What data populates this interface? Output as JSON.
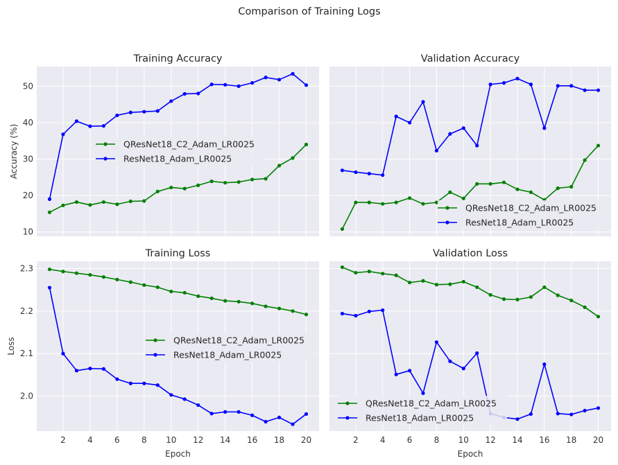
{
  "figure_title": "Comparison of Training Logs",
  "colors": {
    "series_green": "#008000",
    "series_blue": "#0000ff",
    "panel_bg": "#eaeaf2",
    "grid": "#ffffff"
  },
  "chart_data": [
    {
      "type": "line",
      "title": "Training Accuracy",
      "xlabel": "",
      "ylabel": "Accuracy (%)",
      "x": [
        1,
        2,
        3,
        4,
        5,
        6,
        7,
        8,
        9,
        10,
        11,
        12,
        13,
        14,
        15,
        16,
        17,
        18,
        19,
        20
      ],
      "xlim": [
        0.05,
        20.95
      ],
      "ylim": [
        8.8,
        55.4
      ],
      "xticks": [
        2,
        4,
        6,
        8,
        10,
        12,
        14,
        16,
        18,
        20
      ],
      "yticks": [
        10,
        20,
        30,
        40,
        50
      ],
      "show_xticklabels": false,
      "show_yticklabels": true,
      "grid": true,
      "legend_position": "center-left",
      "series": [
        {
          "name": "QResNet18_C2_Adam_LR0025",
          "color": "#008000",
          "values": [
            15.4,
            17.3,
            18.2,
            17.4,
            18.2,
            17.6,
            18.4,
            18.5,
            21.1,
            22.2,
            21.9,
            22.8,
            23.9,
            23.5,
            23.7,
            24.4,
            24.6,
            28.2,
            30.3,
            34.0
          ]
        },
        {
          "name": "ResNet18_Adam_LR0025",
          "color": "#0000ff",
          "values": [
            19.0,
            36.8,
            40.4,
            39.0,
            39.1,
            42.0,
            42.8,
            43.0,
            43.2,
            45.9,
            47.9,
            48.0,
            50.5,
            50.4,
            50.0,
            50.9,
            52.4,
            51.8,
            53.4,
            50.3
          ]
        }
      ]
    },
    {
      "type": "line",
      "title": "Validation Accuracy",
      "xlabel": "",
      "ylabel": "",
      "x": [
        1,
        2,
        3,
        4,
        5,
        6,
        7,
        8,
        9,
        10,
        11,
        12,
        13,
        14,
        15,
        16,
        17,
        18,
        19,
        20
      ],
      "xlim": [
        0.05,
        20.95
      ],
      "ylim": [
        8.8,
        55.4
      ],
      "xticks": [
        2,
        4,
        6,
        8,
        10,
        12,
        14,
        16,
        18,
        20
      ],
      "yticks": [
        10,
        20,
        30,
        40,
        50
      ],
      "show_xticklabels": false,
      "show_yticklabels": false,
      "grid": true,
      "legend_position": "lower-right",
      "series": [
        {
          "name": "QResNet18_C2_Adam_LR0025",
          "color": "#008000",
          "values": [
            10.8,
            18.1,
            18.1,
            17.7,
            18.1,
            19.3,
            17.7,
            18.1,
            20.9,
            19.2,
            23.2,
            23.2,
            23.6,
            21.7,
            20.9,
            18.8,
            22.0,
            22.4,
            29.7,
            33.7
          ]
        },
        {
          "name": "ResNet18_Adam_LR0025",
          "color": "#0000ff",
          "values": [
            26.9,
            26.4,
            26.0,
            25.6,
            41.7,
            40.0,
            45.7,
            32.3,
            36.9,
            38.5,
            33.7,
            50.5,
            50.9,
            52.1,
            50.5,
            38.5,
            50.1,
            50.1,
            48.9,
            48.9
          ]
        }
      ]
    },
    {
      "type": "line",
      "title": "Training Loss",
      "xlabel": "Epoch",
      "ylabel": "Loss",
      "x": [
        1,
        2,
        3,
        4,
        5,
        6,
        7,
        8,
        9,
        10,
        11,
        12,
        13,
        14,
        15,
        16,
        17,
        18,
        19,
        20
      ],
      "xlim": [
        0.05,
        20.95
      ],
      "ylim": [
        1.918,
        2.317
      ],
      "xticks": [
        2,
        4,
        6,
        8,
        10,
        12,
        14,
        16,
        18,
        20
      ],
      "yticks": [
        2.0,
        2.1,
        2.2,
        2.3
      ],
      "ytick_labels": [
        "2.0",
        "2.1",
        "2.2",
        "2.3"
      ],
      "show_xticklabels": true,
      "show_yticklabels": true,
      "grid": true,
      "legend_position": "center-right",
      "series": [
        {
          "name": "QResNet18_C2_Adam_LR0025",
          "color": "#008000",
          "values": [
            2.298,
            2.293,
            2.289,
            2.285,
            2.28,
            2.274,
            2.268,
            2.261,
            2.256,
            2.246,
            2.243,
            2.235,
            2.23,
            2.224,
            2.222,
            2.218,
            2.211,
            2.206,
            2.2,
            2.192
          ]
        },
        {
          "name": "ResNet18_Adam_LR0025",
          "color": "#0000ff",
          "values": [
            2.255,
            2.1,
            2.06,
            2.065,
            2.064,
            2.04,
            2.03,
            2.03,
            2.026,
            2.003,
            1.993,
            1.979,
            1.959,
            1.963,
            1.963,
            1.955,
            1.94,
            1.95,
            1.934,
            1.958
          ]
        }
      ]
    },
    {
      "type": "line",
      "title": "Validation Loss",
      "xlabel": "Epoch",
      "ylabel": "",
      "x": [
        1,
        2,
        3,
        4,
        5,
        6,
        7,
        8,
        9,
        10,
        11,
        12,
        13,
        14,
        15,
        16,
        17,
        18,
        19,
        20
      ],
      "xlim": [
        0.05,
        20.95
      ],
      "ylim": [
        1.918,
        2.317
      ],
      "xticks": [
        2,
        4,
        6,
        8,
        10,
        12,
        14,
        16,
        18,
        20
      ],
      "yticks": [
        2.0,
        2.1,
        2.2,
        2.3
      ],
      "show_xticklabels": true,
      "show_yticklabels": false,
      "grid": true,
      "legend_position": "lower-left",
      "series": [
        {
          "name": "QResNet18_C2_Adam_LR0025",
          "color": "#008000",
          "values": [
            2.303,
            2.29,
            2.293,
            2.288,
            2.284,
            2.267,
            2.271,
            2.262,
            2.263,
            2.269,
            2.256,
            2.238,
            2.228,
            2.227,
            2.233,
            2.256,
            2.237,
            2.225,
            2.209,
            2.187
          ]
        },
        {
          "name": "ResNet18_Adam_LR0025",
          "color": "#0000ff",
          "values": [
            2.194,
            2.189,
            2.199,
            2.202,
            2.051,
            2.06,
            2.007,
            2.127,
            2.082,
            2.065,
            2.101,
            1.959,
            1.95,
            1.946,
            1.958,
            2.075,
            1.959,
            1.957,
            1.966,
            1.972
          ]
        }
      ]
    }
  ]
}
